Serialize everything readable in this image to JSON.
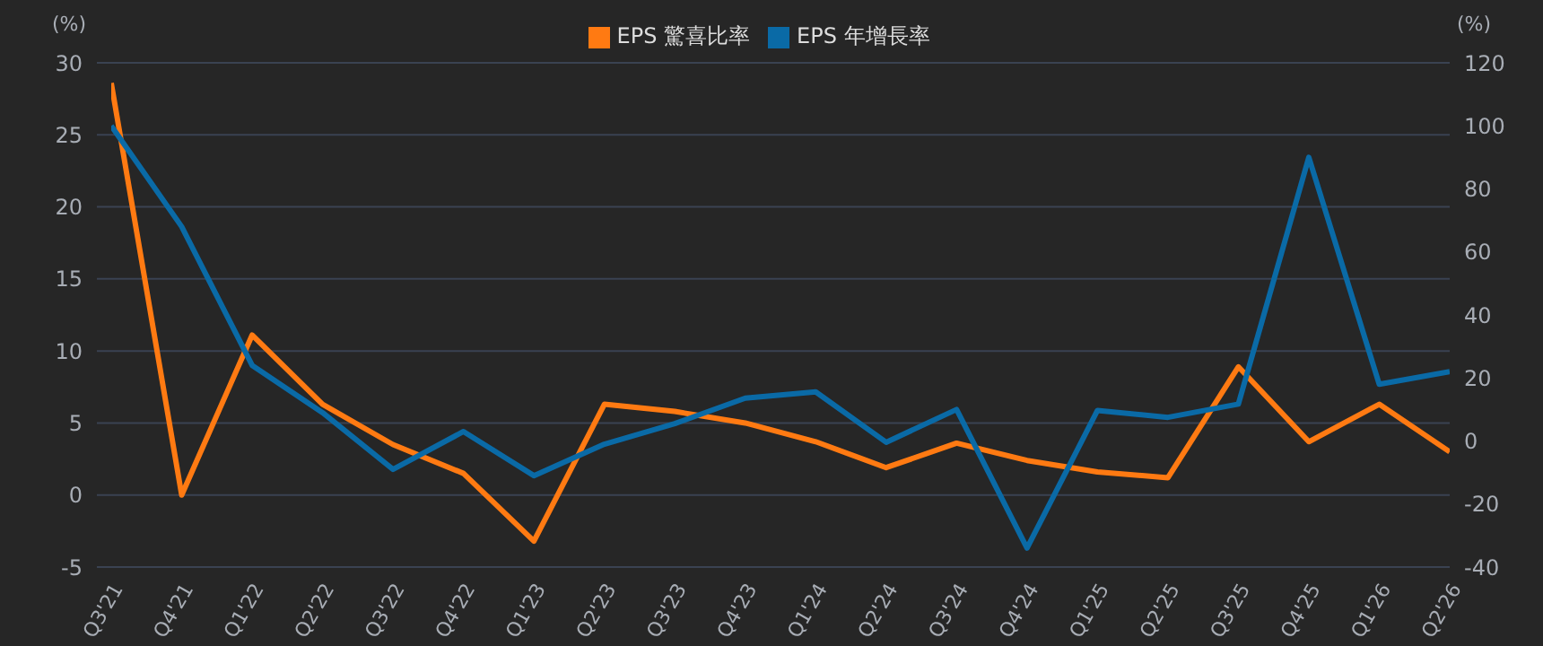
{
  "chart_data": {
    "type": "line",
    "ylabel": "(%)",
    "y2label": "(%)",
    "categories": [
      "Q3'21",
      "Q4'21",
      "Q1'22",
      "Q2'22",
      "Q3'22",
      "Q4'22",
      "Q1'23",
      "Q2'23",
      "Q3'23",
      "Q4'23",
      "Q1'24",
      "Q2'24",
      "Q3'24",
      "Q4'24",
      "Q1'25",
      "Q2'25",
      "Q3'25",
      "Q4'25",
      "Q1'26",
      "Q2'26"
    ],
    "series": [
      {
        "name": "EPS 驚喜比率",
        "color": "#ff7a12",
        "values": [
          28.6,
          0,
          11.1,
          6.3,
          3.5,
          1.5,
          -3.2,
          6.3,
          5.8,
          5.0,
          3.7,
          1.9,
          3.6,
          2.4,
          1.6,
          1.2,
          8.9,
          3.7,
          6.3,
          3.0
        ]
      },
      {
        "name": "EPS 年增長率",
        "color": "#0a6aa6",
        "axis": "y2",
        "values": [
          100,
          68,
          24,
          9,
          -9,
          3,
          -11,
          -1,
          5.5,
          13.6,
          15.6,
          -0.4,
          10,
          -34,
          9.7,
          7.5,
          11.7,
          90,
          18,
          22
        ]
      }
    ],
    "ylim": [
      -5,
      30
    ],
    "yticks": [
      -5,
      0,
      5,
      10,
      15,
      20,
      25,
      30
    ],
    "y2lim": [
      -40,
      120
    ],
    "y2ticks": [
      -40,
      -20,
      0,
      20,
      40,
      60,
      80,
      100,
      120
    ],
    "grid": "y",
    "legend": "top",
    "marker": "none",
    "line_style": "solid"
  }
}
